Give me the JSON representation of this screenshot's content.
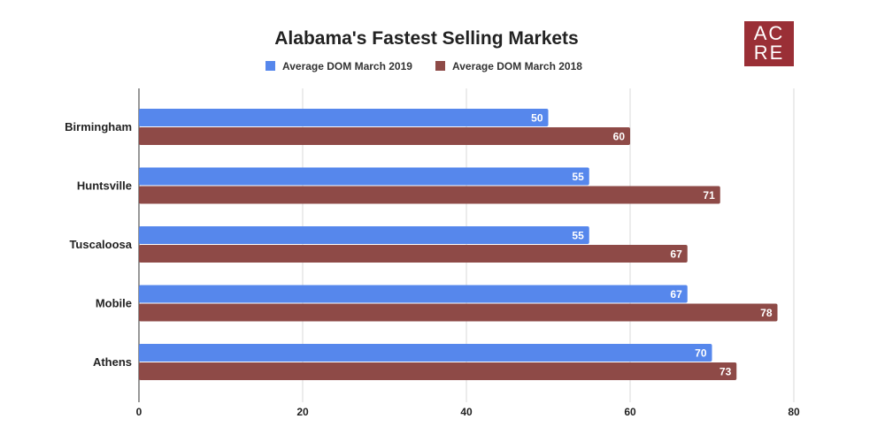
{
  "logo": {
    "text": "ACRE"
  },
  "chart_data": {
    "type": "bar",
    "orientation": "horizontal",
    "title": "Alabama's Fastest Selling Markets",
    "categories": [
      "Birmingham",
      "Huntsville",
      "Tuscaloosa",
      "Mobile",
      "Athens"
    ],
    "series": [
      {
        "name": "Average DOM March 2019",
        "color": "#5687ec",
        "values": [
          50,
          55,
          55,
          67,
          70
        ]
      },
      {
        "name": "Average DOM March 2018",
        "color": "#8e4a47",
        "values": [
          60,
          71,
          67,
          78,
          73
        ]
      }
    ],
    "xlim": [
      0,
      80
    ],
    "xticks": [
      0,
      20,
      40,
      60,
      80
    ],
    "grid": true,
    "legend": "top",
    "xlabel": "",
    "ylabel": ""
  }
}
